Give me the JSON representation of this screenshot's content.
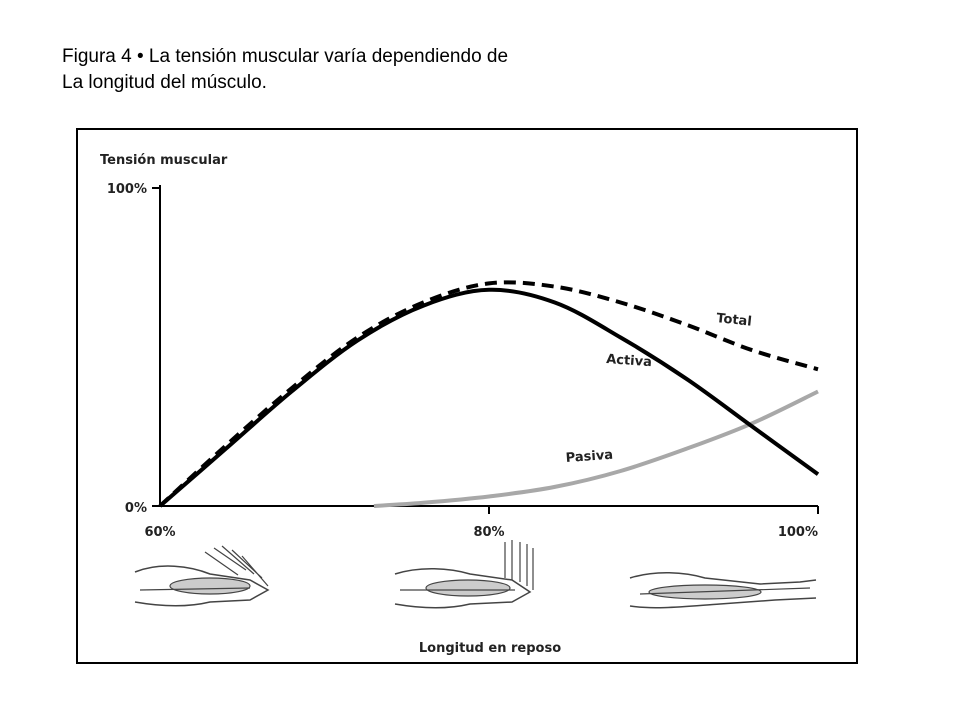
{
  "caption": {
    "line1": "Figura 4 • La tensión muscular varía dependiendo de",
    "line2": "La longitud del músculo."
  },
  "chart_data": {
    "type": "line",
    "ylabel": "Tensión muscular",
    "xlabel": "Longitud en reposo",
    "x_ticks": [
      "60%",
      "80%",
      "100%"
    ],
    "y_ticks": [
      "0%",
      "100%"
    ],
    "xlim": [
      60,
      100
    ],
    "ylim": [
      0,
      100
    ],
    "grid": false,
    "series": [
      {
        "name": "Total",
        "style": "dashed",
        "color": "#000000",
        "x": [
          60,
          64,
          68,
          72,
          76,
          80,
          84,
          88,
          92,
          96,
          100
        ],
        "y": [
          0,
          19,
          37,
          53,
          64,
          70,
          69,
          64,
          57,
          49,
          43
        ]
      },
      {
        "name": "Activa",
        "style": "solid",
        "color": "#000000",
        "x": [
          60,
          64,
          68,
          72,
          76,
          80,
          84,
          88,
          92,
          96,
          100
        ],
        "y": [
          0,
          18,
          36,
          52,
          63,
          68,
          64,
          53,
          40,
          25,
          10
        ]
      },
      {
        "name": "Pasiva",
        "style": "solid",
        "color": "#a8a8a8",
        "x": [
          73,
          76,
          80,
          84,
          88,
          92,
          96,
          100
        ],
        "y": [
          0,
          1,
          3,
          6,
          11,
          18,
          26,
          36
        ]
      }
    ]
  }
}
